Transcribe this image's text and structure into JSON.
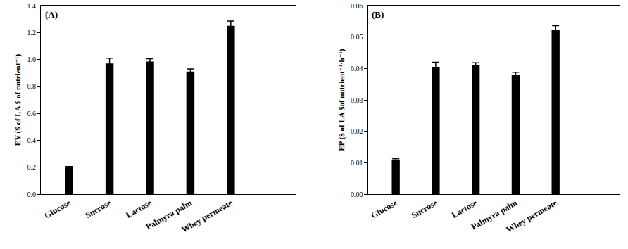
{
  "chart_data": [
    {
      "type": "bar",
      "title": "(A)",
      "y_label": "EY ($ of LA $ of nutrient⁻¹)",
      "categories": [
        "Glucose",
        "Sucrose",
        "Lactose",
        "Palmyra palm",
        "Whey permeate"
      ],
      "values": [
        0.2,
        0.97,
        0.985,
        0.91,
        1.25
      ],
      "errors": [
        0.005,
        0.04,
        0.02,
        0.02,
        0.035
      ],
      "color": "#000000",
      "ylim": [
        0,
        1.4
      ],
      "yticks": [
        {
          "value": 0,
          "label": "0.0"
        },
        0.2,
        0.4,
        0.6,
        0.8,
        {
          "value": 1,
          "label": "1.0"
        },
        1.2,
        1.4
      ],
      "grid": false
    },
    {
      "type": "bar",
      "title": "(B)",
      "y_label": "EP ($ of LA $of nutrient⁻¹·h⁻¹)",
      "categories": [
        "Glucose",
        "Sucrose",
        "Lactose",
        "Palmyra palm",
        "Whey permeate"
      ],
      "values": [
        0.011,
        0.0405,
        0.041,
        0.038,
        0.0523
      ],
      "errors": [
        0.0003,
        0.0015,
        0.0008,
        0.0008,
        0.0013
      ],
      "color": "#000000",
      "ylim": [
        0,
        0.06
      ],
      "yticks": [
        {
          "value": 0,
          "label": "0.00"
        },
        0.01,
        0.02,
        0.03,
        0.04,
        0.05,
        0.06
      ],
      "grid": false
    }
  ]
}
